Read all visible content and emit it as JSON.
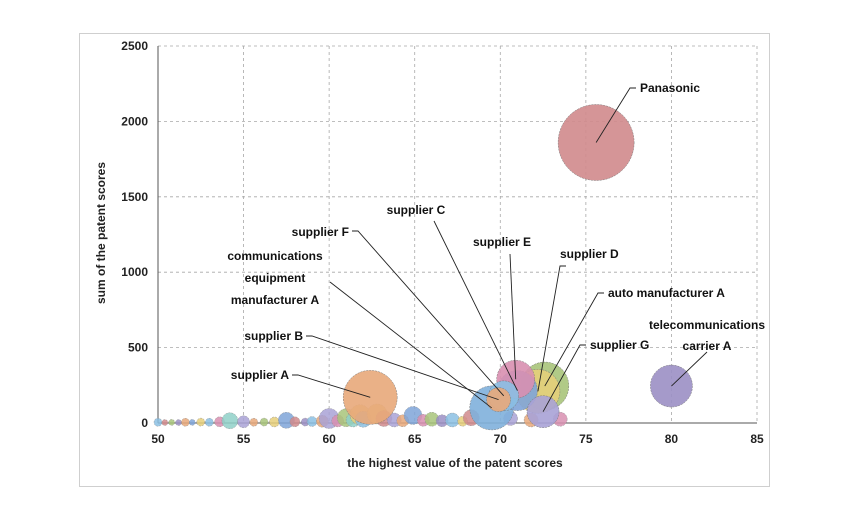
{
  "chart_data": {
    "type": "bubble",
    "xlabel": "the highest value of the patent scores",
    "ylabel": "sum of the patent scores",
    "xlim": [
      50,
      85
    ],
    "ylim": [
      0,
      2500
    ],
    "x_ticks": [
      "50",
      "55",
      "60",
      "65",
      "70",
      "75",
      "80",
      "85"
    ],
    "y_ticks": [
      "0",
      "500",
      "1000",
      "1500",
      "2000",
      "2500"
    ],
    "grid": true,
    "labeled_points": [
      {
        "name": "Panasonic",
        "label_lines": [
          "Panasonic"
        ],
        "x": 75.6,
        "y": 1860,
        "r": 38,
        "color": "#d08a8c"
      },
      {
        "name": "telecommunications carrier A",
        "label_lines": [
          "telecommunications",
          "carrier A"
        ],
        "x": 80.0,
        "y": 245,
        "r": 21,
        "color": "#9b8fc4"
      },
      {
        "name": "auto manufacturer A",
        "label_lines": [
          "auto manufacturer A"
        ],
        "x": 72.6,
        "y": 245,
        "r": 24,
        "color": "#a8c47a"
      },
      {
        "name": "supplier D",
        "label_lines": [
          "supplier D"
        ],
        "x": 72.2,
        "y": 210,
        "r": 22,
        "color": "#e6cf7a"
      },
      {
        "name": "supplier E",
        "label_lines": [
          "supplier E"
        ],
        "x": 70.9,
        "y": 290,
        "r": 19,
        "color": "#d88fb0"
      },
      {
        "name": "supplier C",
        "label_lines": [
          "supplier C"
        ],
        "x": 71.0,
        "y": 215,
        "r": 20,
        "color": "#7fa4d8"
      },
      {
        "name": "supplier F",
        "label_lines": [
          "supplier F"
        ],
        "x": 70.2,
        "y": 180,
        "r": 15,
        "color": "#8bbfe3"
      },
      {
        "name": "supplier G",
        "label_lines": [
          "supplier G"
        ],
        "x": 72.5,
        "y": 75,
        "r": 16,
        "color": "#a9a2d6"
      },
      {
        "name": "communications equipment manufacturer A",
        "label_lines": [
          "communications",
          "equipment",
          "manufacturer A"
        ],
        "x": 69.5,
        "y": 100,
        "r": 22,
        "color": "#7fb0dc"
      },
      {
        "name": "supplier B",
        "label_lines": [
          "supplier B"
        ],
        "x": 69.9,
        "y": 155,
        "r": 12,
        "color": "#e8a87a"
      },
      {
        "name": "supplier A",
        "label_lines": [
          "supplier A"
        ],
        "x": 62.4,
        "y": 170,
        "r": 27,
        "color": "#e8a87a"
      }
    ],
    "other_points": [
      {
        "x": 50.0,
        "y": 5,
        "r": 4,
        "color": "#8bbfe3"
      },
      {
        "x": 50.4,
        "y": 3,
        "r": 3,
        "color": "#d08a8c"
      },
      {
        "x": 50.8,
        "y": 4,
        "r": 3,
        "color": "#a8c47a"
      },
      {
        "x": 51.2,
        "y": 3,
        "r": 3,
        "color": "#9b8fc4"
      },
      {
        "x": 51.6,
        "y": 5,
        "r": 4,
        "color": "#e8a87a"
      },
      {
        "x": 52.0,
        "y": 4,
        "r": 3,
        "color": "#7fa4d8"
      },
      {
        "x": 52.5,
        "y": 6,
        "r": 4,
        "color": "#e6cf7a"
      },
      {
        "x": 53.0,
        "y": 5,
        "r": 4,
        "color": "#8bbfe3"
      },
      {
        "x": 53.6,
        "y": 8,
        "r": 5,
        "color": "#d88fb0"
      },
      {
        "x": 54.2,
        "y": 15,
        "r": 8,
        "color": "#8fd0c8"
      },
      {
        "x": 55.0,
        "y": 8,
        "r": 6,
        "color": "#a9a2d6"
      },
      {
        "x": 55.6,
        "y": 5,
        "r": 4,
        "color": "#e8a87a"
      },
      {
        "x": 56.2,
        "y": 6,
        "r": 4,
        "color": "#a8c47a"
      },
      {
        "x": 56.8,
        "y": 7,
        "r": 5,
        "color": "#e6cf7a"
      },
      {
        "x": 57.5,
        "y": 18,
        "r": 8,
        "color": "#7fa4d8"
      },
      {
        "x": 58.0,
        "y": 8,
        "r": 5,
        "color": "#d08a8c"
      },
      {
        "x": 58.6,
        "y": 6,
        "r": 4,
        "color": "#9b8fc4"
      },
      {
        "x": 59.0,
        "y": 10,
        "r": 5,
        "color": "#8bbfe3"
      },
      {
        "x": 59.6,
        "y": 12,
        "r": 6,
        "color": "#e8a87a"
      },
      {
        "x": 60.0,
        "y": 30,
        "r": 10,
        "color": "#a9a2d6"
      },
      {
        "x": 60.5,
        "y": 14,
        "r": 6,
        "color": "#d88fb0"
      },
      {
        "x": 61.0,
        "y": 35,
        "r": 9,
        "color": "#a8c47a"
      },
      {
        "x": 61.4,
        "y": 20,
        "r": 7,
        "color": "#8fd0c8"
      },
      {
        "x": 61.8,
        "y": 55,
        "r": 10,
        "color": "#e6cf7a"
      },
      {
        "x": 62.0,
        "y": 25,
        "r": 8,
        "color": "#8bbfe3"
      },
      {
        "x": 62.8,
        "y": 60,
        "r": 10,
        "color": "#e6cf7a"
      },
      {
        "x": 63.2,
        "y": 30,
        "r": 8,
        "color": "#d08a8c"
      },
      {
        "x": 63.8,
        "y": 20,
        "r": 7,
        "color": "#a9a2d6"
      },
      {
        "x": 64.3,
        "y": 15,
        "r": 6,
        "color": "#e8a87a"
      },
      {
        "x": 64.9,
        "y": 50,
        "r": 9,
        "color": "#7fa4d8"
      },
      {
        "x": 65.5,
        "y": 18,
        "r": 6,
        "color": "#d88fb0"
      },
      {
        "x": 66.0,
        "y": 25,
        "r": 7,
        "color": "#a8c47a"
      },
      {
        "x": 66.6,
        "y": 15,
        "r": 6,
        "color": "#9b8fc4"
      },
      {
        "x": 67.2,
        "y": 20,
        "r": 7,
        "color": "#8bbfe3"
      },
      {
        "x": 67.8,
        "y": 12,
        "r": 5,
        "color": "#e6cf7a"
      },
      {
        "x": 68.3,
        "y": 35,
        "r": 8,
        "color": "#d08a8c"
      },
      {
        "x": 70.6,
        "y": 30,
        "r": 7,
        "color": "#a9a2d6"
      },
      {
        "x": 71.8,
        "y": 20,
        "r": 7,
        "color": "#e8a87a"
      },
      {
        "x": 73.5,
        "y": 25,
        "r": 7,
        "color": "#d88fb0"
      }
    ]
  }
}
